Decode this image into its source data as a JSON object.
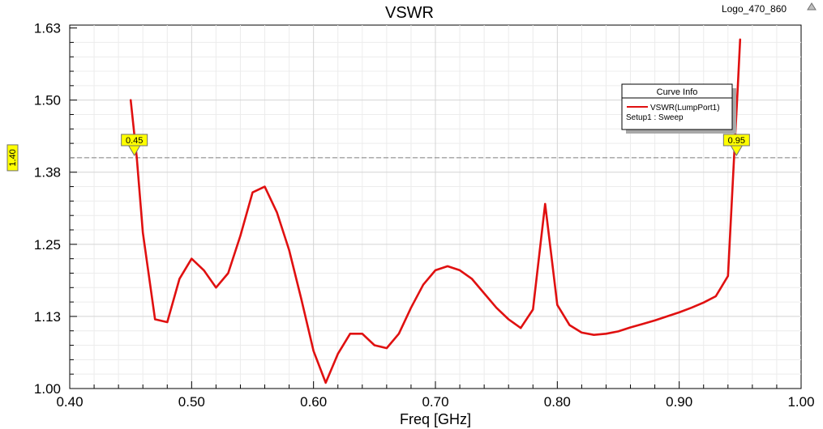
{
  "window": {
    "title": "VSWR",
    "design_name": "Logo_470_860"
  },
  "legend": {
    "header": "Curve Info",
    "entries": [
      {
        "label": "VSWR(LumpPort1)",
        "sublabel": "Setup1 : Sweep",
        "color": "#e01010"
      }
    ]
  },
  "markers": {
    "x": [
      {
        "label": "0.45",
        "x": 0.453
      },
      {
        "label": "0.95",
        "x": 0.947
      }
    ],
    "y": {
      "label": "1.40",
      "y": 1.4
    }
  },
  "chart_data": {
    "type": "line",
    "title": "VSWR",
    "xlabel": "Freq [GHz]",
    "ylabel": "",
    "xlim": [
      0.4,
      1.0
    ],
    "ylim": [
      1.0,
      1.63
    ],
    "x_ticks": [
      "0.40",
      "0.50",
      "0.60",
      "0.70",
      "0.80",
      "0.90",
      "1.00"
    ],
    "x_tick_values": [
      0.4,
      0.5,
      0.6,
      0.7,
      0.8,
      0.9,
      1.0
    ],
    "y_ticks": [
      "1.00",
      "1.13",
      "1.25",
      "1.38",
      "1.50",
      "1.63"
    ],
    "y_tick_values": [
      1.0,
      1.125,
      1.25,
      1.375,
      1.5,
      1.625
    ],
    "grid": true,
    "legend_position": "top-right",
    "series": [
      {
        "name": "VSWR(LumpPort1)",
        "color": "#e01010",
        "x": [
          0.45,
          0.455,
          0.46,
          0.47,
          0.48,
          0.49,
          0.5,
          0.51,
          0.52,
          0.53,
          0.54,
          0.55,
          0.56,
          0.57,
          0.58,
          0.59,
          0.6,
          0.61,
          0.62,
          0.63,
          0.64,
          0.65,
          0.66,
          0.67,
          0.68,
          0.69,
          0.7,
          0.71,
          0.72,
          0.73,
          0.74,
          0.75,
          0.76,
          0.77,
          0.78,
          0.79,
          0.8,
          0.81,
          0.82,
          0.83,
          0.84,
          0.85,
          0.86,
          0.87,
          0.88,
          0.89,
          0.9,
          0.91,
          0.92,
          0.93,
          0.94,
          0.945,
          0.948,
          0.95
        ],
        "values": [
          1.5,
          1.4,
          1.27,
          1.12,
          1.115,
          1.19,
          1.225,
          1.205,
          1.175,
          1.2,
          1.265,
          1.34,
          1.35,
          1.305,
          1.24,
          1.155,
          1.065,
          1.01,
          1.06,
          1.095,
          1.095,
          1.075,
          1.07,
          1.095,
          1.14,
          1.18,
          1.205,
          1.212,
          1.205,
          1.19,
          1.165,
          1.14,
          1.12,
          1.105,
          1.137,
          1.32,
          1.145,
          1.11,
          1.097,
          1.093,
          1.095,
          1.099,
          1.106,
          1.112,
          1.118,
          1.125,
          1.132,
          1.14,
          1.149,
          1.16,
          1.195,
          1.4,
          1.52,
          1.605
        ]
      }
    ]
  }
}
